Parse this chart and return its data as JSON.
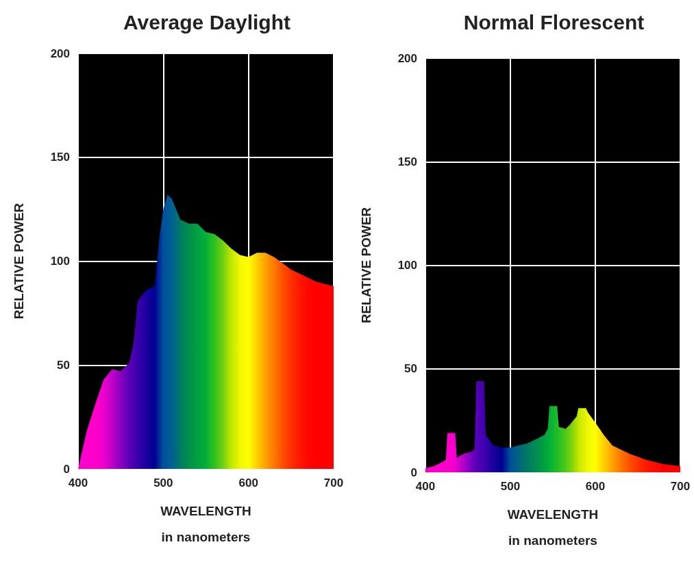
{
  "chart_data": [
    {
      "type": "area",
      "title": "Average Daylight",
      "xlabel": "WAVELENGTH\nin nanometers",
      "ylabel": "RELATIVE POWER",
      "xlim": [
        400,
        700
      ],
      "xticks": [
        400,
        500,
        600,
        700
      ],
      "ylim": [
        0,
        200
      ],
      "yticks": [
        0,
        50,
        100,
        150,
        200
      ],
      "grid": true,
      "marker": "none",
      "series": [
        {
          "x": [
            400,
            410,
            420,
            430,
            440,
            450,
            460,
            465,
            470,
            480,
            490,
            495,
            500,
            505,
            510,
            515,
            520,
            530,
            540,
            550,
            560,
            570,
            580,
            590,
            600,
            610,
            620,
            630,
            640,
            650,
            660,
            670,
            680,
            690,
            700
          ],
          "values": [
            0,
            18,
            31,
            43,
            48,
            47,
            51,
            60,
            81,
            86,
            88,
            110,
            125,
            132,
            130,
            125,
            120,
            118,
            118,
            114,
            113,
            110,
            106,
            103,
            102,
            104,
            104,
            102,
            99,
            96,
            94,
            92,
            90,
            89,
            88
          ],
          "colors": [
            "#ff00cc",
            "#ff00cc",
            "#ff00cc",
            "#ee00cc",
            "#c000c8",
            "#8a00c0",
            "#5a00b8",
            "#4a00b0",
            "#3a00a8",
            "#1a00a0",
            "#000090",
            "#002a98",
            "#00509a",
            "#00589a",
            "#006090",
            "#006c80",
            "#007a60",
            "#00904a",
            "#00a040",
            "#00b038",
            "#30c020",
            "#70d010",
            "#c0e800",
            "#f0f800",
            "#ffff00",
            "#ffd000",
            "#ffa000",
            "#ff7800",
            "#ff5000",
            "#ff3000",
            "#ff1800",
            "#ff0800",
            "#ff0000",
            "#ff0000",
            "#ff0000"
          ]
        }
      ]
    },
    {
      "type": "area",
      "title": "Normal Florescent",
      "xlabel": "WAVELENGTH\nin nanometers",
      "ylabel": "RELATIVE POWER",
      "xlim": [
        400,
        700
      ],
      "xticks": [
        400,
        500,
        600,
        700
      ],
      "ylim": [
        0,
        200
      ],
      "yticks": [
        0,
        50,
        100,
        150,
        200
      ],
      "grid": true,
      "marker": "none",
      "series": [
        {
          "x": [
            400,
            410,
            420,
            424,
            426,
            435,
            437,
            445,
            455,
            458,
            460,
            469,
            471,
            480,
            490,
            500,
            520,
            540,
            544,
            546,
            555,
            557,
            565,
            570,
            578,
            580,
            589,
            591,
            600,
            610,
            620,
            640,
            660,
            680,
            700
          ],
          "values": [
            2,
            3,
            5,
            6,
            19,
            19,
            7,
            9,
            10,
            12,
            44,
            44,
            18,
            13,
            12,
            12,
            14,
            18,
            21,
            32,
            32,
            22,
            21,
            23,
            27,
            31,
            31,
            29,
            24,
            18,
            13,
            9,
            6,
            4,
            3
          ],
          "colors": [
            "#ff00cc",
            "#ff00cc",
            "#ff00cc",
            "#ff00cc",
            "#ff00cc",
            "#f000cc",
            "#e000cc",
            "#b000c8",
            "#7000c0",
            "#6000bc",
            "#5a00b8",
            "#4000b0",
            "#3a00a8",
            "#1a00a0",
            "#000090",
            "#00509a",
            "#007a60",
            "#00a040",
            "#00a840",
            "#00b038",
            "#20bc28",
            "#28c024",
            "#50c818",
            "#70d010",
            "#b0e000",
            "#c0e800",
            "#e8f400",
            "#f0f800",
            "#ffff00",
            "#ffd000",
            "#ffa000",
            "#ff5000",
            "#ff1800",
            "#ff0000",
            "#ff0000"
          ]
        }
      ]
    }
  ]
}
